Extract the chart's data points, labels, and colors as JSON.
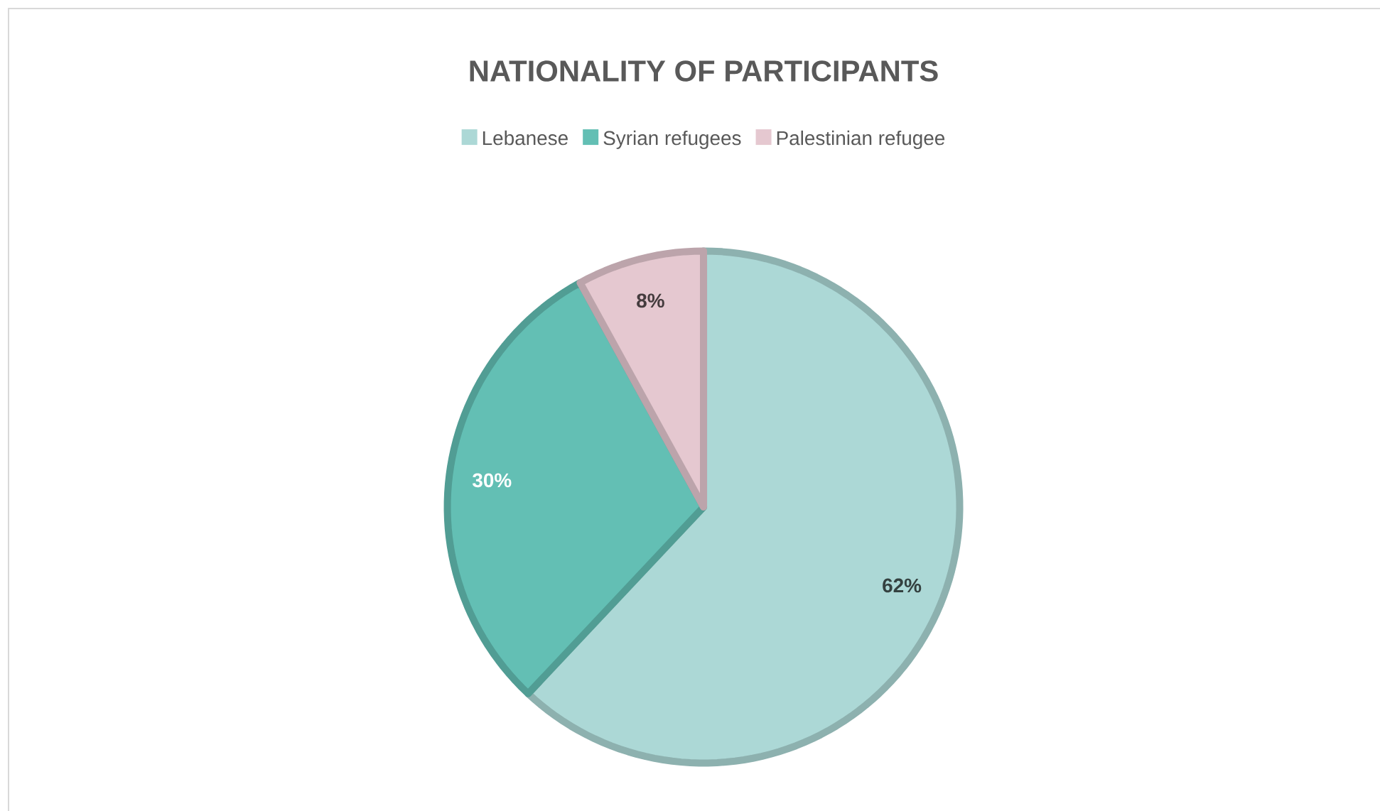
{
  "chart_data": {
    "type": "pie",
    "title": "NATIONALITY OF PARTICIPANTS",
    "categories": [
      "Lebanese",
      "Syrian refugees",
      "Palestinian refugee"
    ],
    "values": [
      62,
      30,
      8
    ],
    "value_labels": [
      "62%",
      "30%",
      "8%"
    ],
    "colors": [
      "#acd8d6",
      "#63bfb4",
      "#e5c8d0"
    ],
    "legend": "top"
  }
}
